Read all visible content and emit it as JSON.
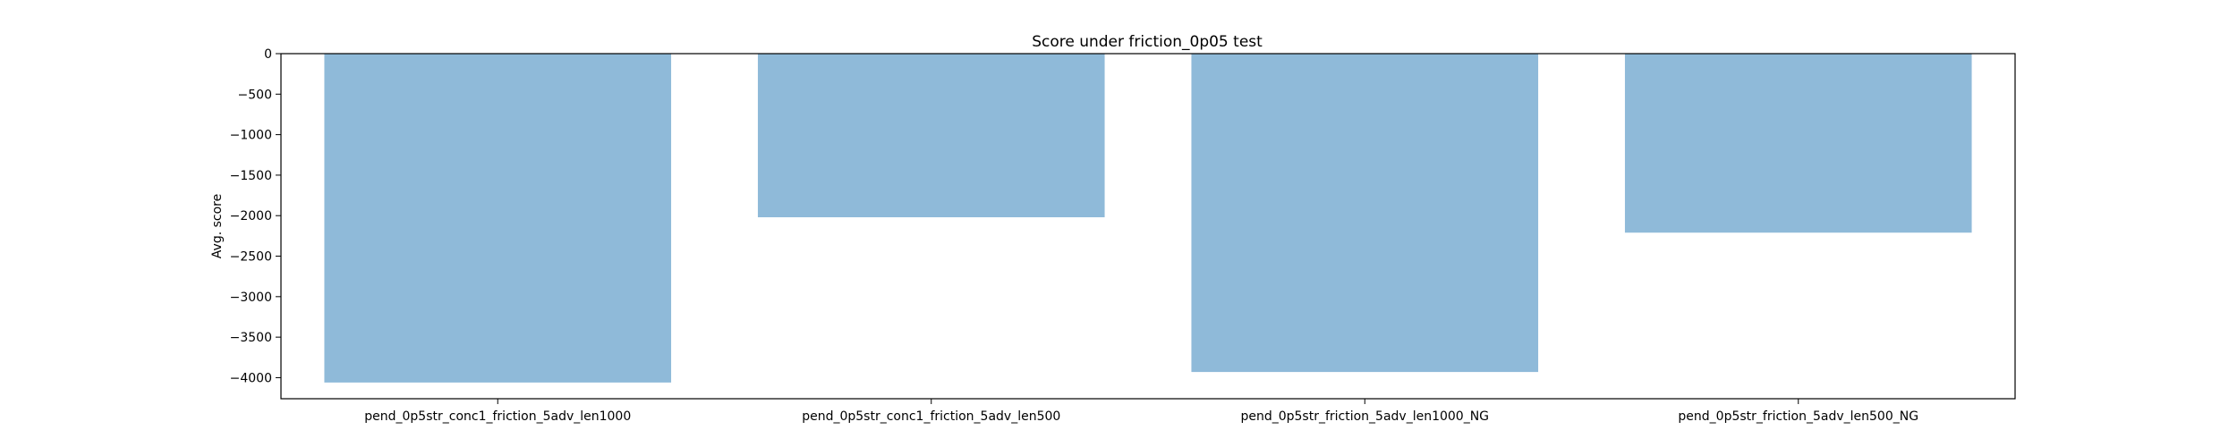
{
  "chart_data": {
    "type": "bar",
    "title": "Score under friction_0p05 test",
    "xlabel": "",
    "ylabel": "Avg. score",
    "categories": [
      "pend_0p5str_conc1_friction_5adv_len1000",
      "pend_0p5str_conc1_friction_5adv_len500",
      "pend_0p5str_friction_5adv_len1000_NG",
      "pend_0p5str_friction_5adv_len500_NG"
    ],
    "values": [
      -4060,
      -2020,
      -3930,
      -2210
    ],
    "ylim": [
      -4260,
      0
    ],
    "yticks": [
      0,
      -500,
      -1000,
      -1500,
      -2000,
      -2500,
      -3000,
      -3500,
      -4000
    ],
    "grid": false,
    "bar_color": "#8fbad9"
  }
}
